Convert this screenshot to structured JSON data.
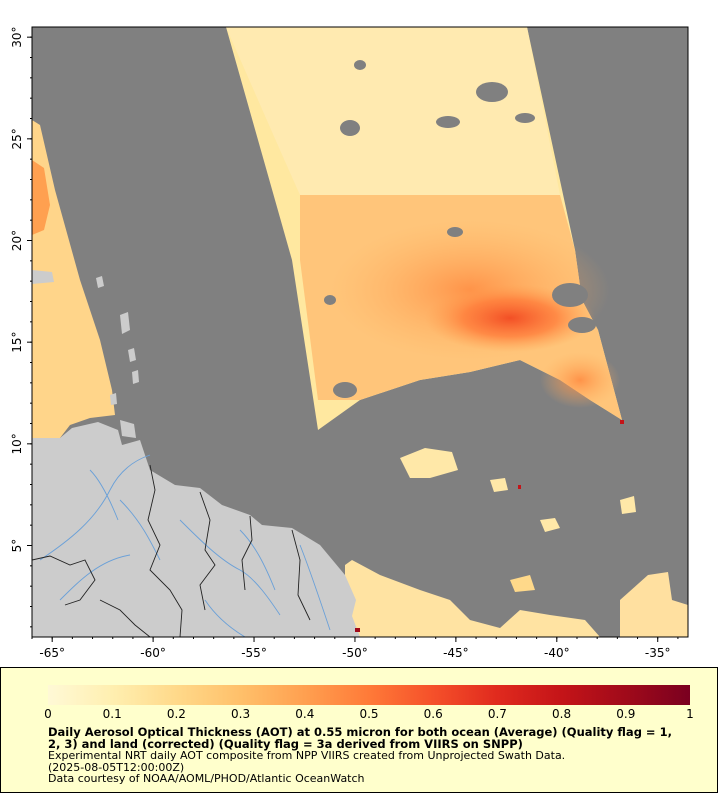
{
  "map": {
    "lon_range": [
      -66,
      -33.5
    ],
    "lat_range": [
      0.5,
      30.5
    ],
    "lon_ticks": [
      {
        "value": -65,
        "label": "-65°"
      },
      {
        "value": -60,
        "label": "-60°"
      },
      {
        "value": -55,
        "label": "-55°"
      },
      {
        "value": -50,
        "label": "-50°"
      },
      {
        "value": -45,
        "label": "-45°"
      },
      {
        "value": -40,
        "label": "-40°"
      },
      {
        "value": -35,
        "label": "-35°"
      }
    ],
    "lat_ticks": [
      {
        "value": 5,
        "label": "5°"
      },
      {
        "value": 10,
        "label": "10°"
      },
      {
        "value": 15,
        "label": "15°"
      },
      {
        "value": 20,
        "label": "20°"
      },
      {
        "value": 25,
        "label": "25°"
      },
      {
        "value": 30,
        "label": "30°"
      }
    ],
    "colors": {
      "nodata": "#808080",
      "land": "#cccccc",
      "rivers": "#6aa0d8",
      "borders": "#333333"
    }
  },
  "colorbar": {
    "range": [
      0,
      1
    ],
    "ticks": [
      "0",
      "0.1",
      "0.2",
      "0.3",
      "0.4",
      "0.5",
      "0.6",
      "0.7",
      "0.8",
      "0.9",
      "1"
    ],
    "colors": [
      "#fff9d6",
      "#ffefb0",
      "#ffd98a",
      "#ffc06a",
      "#ffa050",
      "#ff7a38",
      "#f5502a",
      "#e02a1e",
      "#c41418",
      "#a00a1a",
      "#7a0020"
    ]
  },
  "caption": {
    "title_line1": "Daily Aerosol Optical Thickness (AOT) at 0.55 micron for both ocean (Average) (Quality flag = 1,",
    "title_line2": "2, 3) and land (corrected) (Quality flag = 3a derived from VIIRS on SNPP)",
    "line3": "Experimental NRT daily AOT composite from NPP VIIRS created from Unprojected Swath Data.",
    "line4": "(2025-08-05T12:00:00Z)",
    "line5": "Data courtesy of NOAA/AOML/PHOD/Atlantic OceanWatch"
  }
}
